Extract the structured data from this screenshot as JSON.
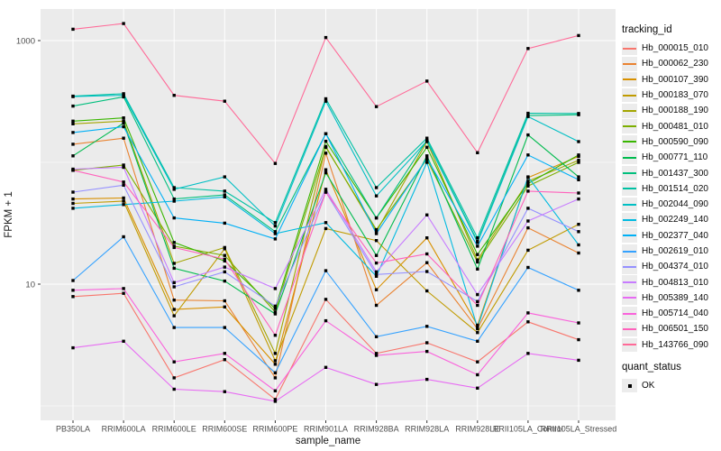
{
  "chart_data": {
    "type": "line",
    "title": "",
    "xlabel": "sample_name",
    "ylabel": "FPKM + 1",
    "yscale": "log10",
    "ylim": [
      0.8,
      1900
    ],
    "grid": true,
    "panel_bg": "#EBEBEB",
    "grid_color": "#FFFFFF",
    "ytick_values": [
      1000,
      10
    ],
    "ytick_labels": [
      "1000",
      "10"
    ],
    "yminor_values": [
      100,
      1
    ],
    "marker": {
      "shape": "square",
      "color": "#000000",
      "label": "OK"
    },
    "categories": [
      "PB350LA",
      "RRIM600LA",
      "RRIM600LE",
      "RRIM600SE",
      "RRIM600PE",
      "RRIM901LA",
      "RRIM928BA",
      "RRIM928LA",
      "RRIM928LE",
      "RRII105LA_Control",
      "RRII105LA_Stressed"
    ],
    "series": [
      {
        "name": "Hb_000015_010",
        "color": "#F8766D",
        "values": [
          7.9,
          8.4,
          1.7,
          2.4,
          1.13,
          7.5,
          2.7,
          3.3,
          2.3,
          4.9,
          3.5
        ]
      },
      {
        "name": "Hb_000062_230",
        "color": "#EA8331",
        "values": [
          141,
          158,
          7.4,
          7.3,
          1.7,
          119,
          6.7,
          15,
          4.3,
          29,
          18
        ]
      },
      {
        "name": "Hb_000107_390",
        "color": "#D89000",
        "values": [
          50,
          51,
          6.2,
          6.5,
          2.2,
          87,
          9.0,
          24,
          4.6,
          75,
          112
        ]
      },
      {
        "name": "Hb_000183_070",
        "color": "#C09B00",
        "values": [
          46,
          48,
          5.5,
          19.5,
          2.35,
          28.6,
          22.8,
          8.8,
          4.0,
          19,
          31
        ]
      },
      {
        "name": "Hb_000188_190",
        "color": "#A3A500",
        "values": [
          207,
          218,
          14.8,
          20,
          2.7,
          135,
          27,
          148,
          15.8,
          70,
          104
        ]
      },
      {
        "name": "Hb_000481_010",
        "color": "#7CAE00",
        "values": [
          86,
          95,
          20.5,
          17.2,
          5.9,
          133,
          28,
          106,
          15.2,
          64,
          100
        ]
      },
      {
        "name": "Hb_000590_090",
        "color": "#39B600",
        "values": [
          218,
          232,
          22,
          15.5,
          6.3,
          149,
          35,
          133,
          17.5,
          67,
          115
        ]
      },
      {
        "name": "Hb_000771_110",
        "color": "#00BB4E",
        "values": [
          113,
          210,
          13.5,
          10.6,
          5.7,
          82,
          17.2,
          113,
          13.3,
          168,
          76
        ]
      },
      {
        "name": "Hb_001437_300",
        "color": "#00BF7D",
        "values": [
          290,
          345,
          50,
          54,
          27,
          172,
          35,
          152,
          22.5,
          242,
          246
        ]
      },
      {
        "name": "Hb_001514_020",
        "color": "#00C1A3",
        "values": [
          350,
          366,
          62,
          58,
          32,
          333,
          62,
          158,
          24,
          253,
          252
        ]
      },
      {
        "name": "Hb_002044_090",
        "color": "#00BFC4",
        "values": [
          347,
          356,
          60,
          76,
          30,
          318,
          53,
          150,
          22,
          238,
          148
        ]
      },
      {
        "name": "Hb_002249_140",
        "color": "#00BAE0",
        "values": [
          42,
          45,
          48,
          52,
          26,
          32,
          11.6,
          100,
          4.4,
          76,
          21
        ]
      },
      {
        "name": "Hb_002377_040",
        "color": "#00B0F6",
        "values": [
          176,
          196,
          35,
          31.7,
          23.5,
          172,
          26,
          108,
          20.5,
          115,
          72
        ]
      },
      {
        "name": "Hb_002619_010",
        "color": "#35A2FF",
        "values": [
          10.7,
          24.5,
          4.4,
          4.4,
          1.87,
          12.9,
          3.7,
          4.5,
          3.4,
          13.7,
          8.9
        ]
      },
      {
        "name": "Hb_004374_010",
        "color": "#9590FF",
        "values": [
          57,
          65,
          9.5,
          12.6,
          6.6,
          57,
          12.0,
          12.7,
          7.2,
          42,
          27
        ]
      },
      {
        "name": "Hb_004813_010",
        "color": "#C77CFF",
        "values": [
          88,
          91,
          10.3,
          13.8,
          9.2,
          60,
          12.6,
          37,
          8.2,
          33,
          50
        ]
      },
      {
        "name": "Hb_005389_140",
        "color": "#E76BF3",
        "values": [
          3.0,
          3.4,
          1.37,
          1.31,
          1.09,
          2.07,
          1.5,
          1.65,
          1.4,
          2.7,
          2.37
        ]
      },
      {
        "name": "Hb_005714_040",
        "color": "#FA62DB",
        "values": [
          8.9,
          9.2,
          2.3,
          2.7,
          1.33,
          5.0,
          2.6,
          2.8,
          1.8,
          5.8,
          4.8
        ]
      },
      {
        "name": "Hb_006501_150",
        "color": "#FF62BC",
        "values": [
          86,
          69,
          20,
          16,
          3.8,
          57,
          14.9,
          17.7,
          6.7,
          58,
          56
        ]
      },
      {
        "name": "Hb_143766_090",
        "color": "#FF6A98",
        "values": [
          1240,
          1380,
          355,
          318,
          98,
          1060,
          287,
          465,
          120,
          860,
          1100
        ]
      }
    ]
  },
  "legend": {
    "tracking_title": "tracking_id",
    "quant_title": "quant_status",
    "ok_label": "OK"
  }
}
